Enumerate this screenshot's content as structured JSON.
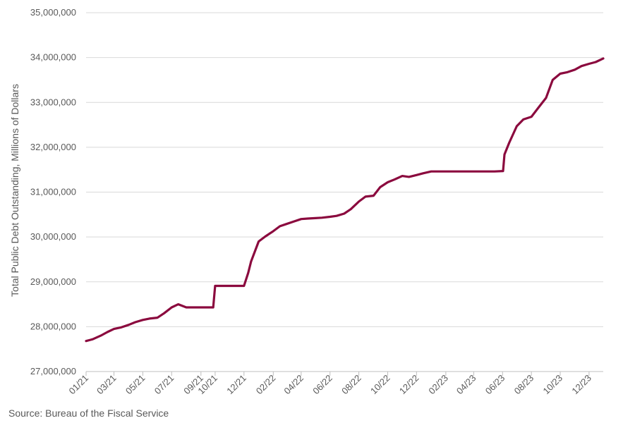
{
  "chart_data": {
    "type": "line",
    "ylabel": "Total Public Debt Outstanding, Millions of Dollars",
    "ylim": [
      27000000,
      35000000
    ],
    "y_ticks": [
      27000000,
      28000000,
      29000000,
      30000000,
      31000000,
      32000000,
      33000000,
      34000000,
      35000000
    ],
    "y_tick_labels": [
      "27,000,000",
      "28,000,000",
      "29,000,000",
      "30,000,000",
      "31,000,000",
      "32,000,000",
      "33,000,000",
      "34,000,000",
      "35,000,000"
    ],
    "x_ticks": [
      "2021-01-01",
      "2021-03-01",
      "2021-05-01",
      "2021-07-01",
      "2021-09-01",
      "2021-10-01",
      "2021-12-01",
      "2022-02-01",
      "2022-04-01",
      "2022-06-01",
      "2022-08-01",
      "2022-10-01",
      "2022-12-01",
      "2023-02-01",
      "2023-04-01",
      "2023-06-01",
      "2023-08-01",
      "2023-10-01",
      "2023-12-01"
    ],
    "x_tick_labels": [
      "01/21",
      "03/21",
      "05/21",
      "07/21",
      "09/21",
      "10/21",
      "12/21",
      "02/22",
      "04/22",
      "06/22",
      "08/22",
      "10/22",
      "12/22",
      "02/23",
      "04/23",
      "06/23",
      "08/23",
      "10/23",
      "12/23"
    ],
    "xlim": [
      "2021-01-01",
      "2023-12-31"
    ],
    "grid": "horizontal",
    "line_color": "#8B0A3E",
    "series": [
      {
        "x": [
          "2021-01-01",
          "2021-01-15",
          "2021-02-01",
          "2021-02-15",
          "2021-03-01",
          "2021-03-15",
          "2021-04-01",
          "2021-04-15",
          "2021-05-01",
          "2021-05-15",
          "2021-06-01",
          "2021-06-15",
          "2021-07-01",
          "2021-07-15",
          "2021-08-01",
          "2021-08-15",
          "2021-09-01",
          "2021-09-15",
          "2021-09-24",
          "2021-09-27",
          "2021-10-01",
          "2021-10-15",
          "2021-11-01",
          "2021-11-15",
          "2021-12-01",
          "2021-12-10",
          "2021-12-16",
          "2022-01-01",
          "2022-01-15",
          "2022-02-01",
          "2022-02-15",
          "2022-03-01",
          "2022-03-15",
          "2022-04-01",
          "2022-04-15",
          "2022-05-01",
          "2022-05-15",
          "2022-06-01",
          "2022-06-15",
          "2022-07-01",
          "2022-07-15",
          "2022-08-01",
          "2022-08-15",
          "2022-09-01",
          "2022-09-15",
          "2022-10-01",
          "2022-10-15",
          "2022-11-01",
          "2022-11-15",
          "2022-12-01",
          "2022-12-15",
          "2023-01-01",
          "2023-01-15",
          "2023-02-01",
          "2023-02-15",
          "2023-03-01",
          "2023-03-15",
          "2023-04-01",
          "2023-04-15",
          "2023-05-01",
          "2023-05-15",
          "2023-06-02",
          "2023-06-05",
          "2023-06-15",
          "2023-07-01",
          "2023-07-15",
          "2023-08-01",
          "2023-08-15",
          "2023-09-01",
          "2023-09-15",
          "2023-10-01",
          "2023-10-15",
          "2023-11-01",
          "2023-11-15",
          "2023-12-01",
          "2023-12-15",
          "2023-12-31"
        ],
        "y": [
          27680000,
          27720000,
          27800000,
          27880000,
          27950000,
          27980000,
          28040000,
          28100000,
          28150000,
          28180000,
          28200000,
          28300000,
          28430000,
          28500000,
          28430000,
          28430000,
          28430000,
          28430000,
          28430000,
          28430000,
          28910000,
          28910000,
          28910000,
          28910000,
          28910000,
          29200000,
          29450000,
          29900000,
          30010000,
          30130000,
          30240000,
          30290000,
          30340000,
          30400000,
          30410000,
          30420000,
          30430000,
          30450000,
          30470000,
          30520000,
          30620000,
          30790000,
          30900000,
          30920000,
          31110000,
          31220000,
          31280000,
          31360000,
          31340000,
          31380000,
          31420000,
          31460000,
          31460000,
          31460000,
          31460000,
          31460000,
          31460000,
          31460000,
          31460000,
          31460000,
          31460000,
          31470000,
          31840000,
          32100000,
          32470000,
          32620000,
          32680000,
          32870000,
          33100000,
          33500000,
          33640000,
          33670000,
          33730000,
          33810000,
          33860000,
          33900000,
          33980000
        ]
      }
    ]
  },
  "source": "Source: Bureau of the Fiscal Service"
}
